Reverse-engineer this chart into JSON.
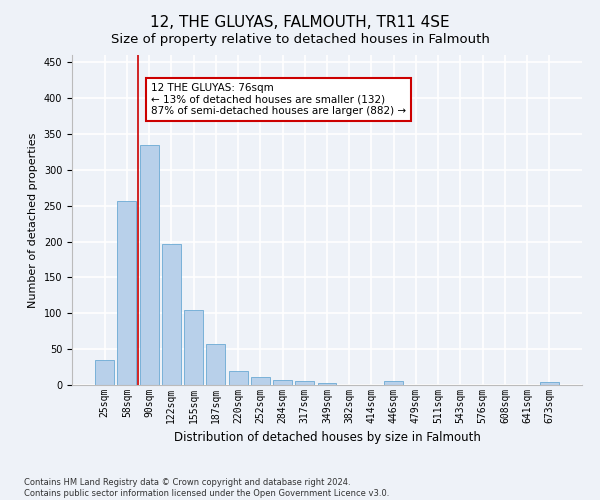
{
  "title": "12, THE GLUYAS, FALMOUTH, TR11 4SE",
  "subtitle": "Size of property relative to detached houses in Falmouth",
  "xlabel": "Distribution of detached houses by size in Falmouth",
  "ylabel": "Number of detached properties",
  "categories": [
    "25sqm",
    "58sqm",
    "90sqm",
    "122sqm",
    "155sqm",
    "187sqm",
    "220sqm",
    "252sqm",
    "284sqm",
    "317sqm",
    "349sqm",
    "382sqm",
    "414sqm",
    "446sqm",
    "479sqm",
    "511sqm",
    "543sqm",
    "576sqm",
    "608sqm",
    "641sqm",
    "673sqm"
  ],
  "values": [
    35,
    256,
    335,
    197,
    104,
    57,
    19,
    11,
    7,
    5,
    3,
    0,
    0,
    5,
    0,
    0,
    0,
    0,
    0,
    0,
    4
  ],
  "bar_color": "#b8d0ea",
  "bar_edge_color": "#6aaad4",
  "vline_x": 1.5,
  "annotation_line1": "12 THE GLUYAS: 76sqm",
  "annotation_line2": "← 13% of detached houses are smaller (132)",
  "annotation_line3": "87% of semi-detached houses are larger (882) →",
  "annotation_box_color": "#ffffff",
  "annotation_box_edge_color": "#cc0000",
  "vline_color": "#cc0000",
  "ylim": [
    0,
    460
  ],
  "yticks": [
    0,
    50,
    100,
    150,
    200,
    250,
    300,
    350,
    400,
    450
  ],
  "footer_text": "Contains HM Land Registry data © Crown copyright and database right 2024.\nContains public sector information licensed under the Open Government Licence v3.0.",
  "background_color": "#eef2f8",
  "grid_color": "#ffffff",
  "title_fontsize": 11,
  "subtitle_fontsize": 9.5,
  "xlabel_fontsize": 8.5,
  "ylabel_fontsize": 8,
  "tick_fontsize": 7,
  "annotation_fontsize": 7.5,
  "footer_fontsize": 6
}
